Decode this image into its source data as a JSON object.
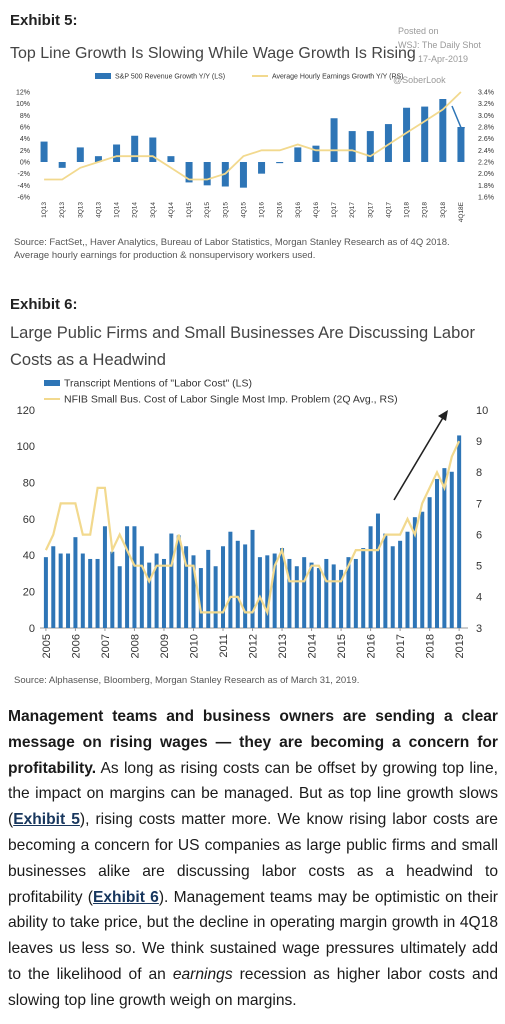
{
  "chart_data": [
    {
      "type": "combo",
      "title": "Exhibit 5:",
      "subtitle": "Top Line Growth Is Slowing While Wage Growth Is Rising",
      "categories": [
        "1Q13",
        "2Q13",
        "3Q13",
        "4Q13",
        "1Q14",
        "2Q14",
        "3Q14",
        "4Q14",
        "1Q15",
        "2Q15",
        "3Q15",
        "4Q15",
        "1Q16",
        "2Q16",
        "3Q16",
        "4Q16",
        "1Q17",
        "2Q17",
        "3Q17",
        "4Q17",
        "1Q18",
        "2Q18",
        "3Q18",
        "4Q18E"
      ],
      "series": [
        {
          "name": "S&P 500 Revenue Growth Y/Y (LS)",
          "kind": "bar",
          "axis": "y",
          "color": "#2e75b6",
          "values": [
            3.5,
            -1,
            2.5,
            1,
            3,
            4.5,
            4.2,
            1,
            -3.5,
            -4,
            -4.2,
            -4.4,
            -2,
            -0.2,
            2.5,
            2.8,
            7.5,
            5.3,
            5.3,
            6.5,
            9.3,
            9.5,
            10.8,
            6
          ]
        },
        {
          "name": "Average Hourly Earnings Growth Y/Y (RS)",
          "kind": "line",
          "axis": "y2",
          "color": "#f2d98e",
          "values": [
            1.9,
            1.9,
            2.1,
            2.2,
            2.3,
            2.3,
            2.3,
            2.1,
            1.9,
            1.9,
            2.0,
            2.3,
            2.4,
            2.4,
            2.5,
            2.4,
            2.4,
            2.4,
            2.3,
            2.5,
            2.7,
            2.9,
            3.1,
            3.4
          ]
        }
      ],
      "ylim": [
        -6,
        12
      ],
      "yticks": [
        {
          "value": -6,
          "label": "-6%"
        },
        {
          "value": -4,
          "label": "-4%"
        },
        {
          "value": -2,
          "label": "-2%"
        },
        {
          "value": 0,
          "label": "0%"
        },
        {
          "value": 2,
          "label": "2%"
        },
        {
          "value": 4,
          "label": "4%"
        },
        {
          "value": 6,
          "label": "6%"
        },
        {
          "value": 8,
          "label": "8%"
        },
        {
          "value": 10,
          "label": "10%"
        },
        {
          "value": 12,
          "label": "12%"
        }
      ],
      "y2lim": [
        1.6,
        3.4
      ],
      "y2ticks": [
        {
          "value": 1.6,
          "label": "1.6%"
        },
        {
          "value": 1.8,
          "label": "1.8%"
        },
        {
          "value": 2.0,
          "label": "2.0%"
        },
        {
          "value": 2.2,
          "label": "2.2%"
        },
        {
          "value": 2.4,
          "label": "2.4%"
        },
        {
          "value": 2.6,
          "label": "2.6%"
        },
        {
          "value": 2.8,
          "label": "2.8%"
        },
        {
          "value": 3.0,
          "label": "3.0%"
        },
        {
          "value": 3.2,
          "label": "3.2%"
        },
        {
          "value": 3.4,
          "label": "3.4%"
        }
      ],
      "source": [
        "Source: FactSet,, Haver Analytics, Bureau of Labor Statistics, Morgan Stanley Research as of 4Q 2018.",
        "Average hourly earnings for production & nonsupervisory workers used."
      ]
    },
    {
      "type": "combo",
      "title": "Exhibit 6:",
      "subtitle": "Large Public Firms and Small Businesses Are Discussing Labor Costs as a Headwind",
      "x": [
        2005,
        2005.25,
        2005.5,
        2005.75,
        2006,
        2006.25,
        2006.5,
        2006.75,
        2007,
        2007.25,
        2007.5,
        2007.75,
        2008,
        2008.25,
        2008.5,
        2008.75,
        2009,
        2009.25,
        2009.5,
        2009.75,
        2010,
        2010.25,
        2010.5,
        2010.75,
        2011,
        2011.25,
        2011.5,
        2011.75,
        2012,
        2012.25,
        2012.5,
        2012.75,
        2013,
        2013.25,
        2013.5,
        2013.75,
        2014,
        2014.25,
        2014.5,
        2014.75,
        2015,
        2015.25,
        2015.5,
        2015.75,
        2016,
        2016.25,
        2016.5,
        2016.75,
        2017,
        2017.25,
        2017.5,
        2017.75,
        2018,
        2018.25,
        2018.5,
        2018.75,
        2019
      ],
      "series": [
        {
          "name": "Transcript Mentions of \"Labor Cost\" (LS)",
          "kind": "bar",
          "axis": "y",
          "color": "#2e75b6",
          "values": [
            39,
            45,
            41,
            41,
            50,
            41,
            38,
            38,
            56,
            42,
            34,
            56,
            56,
            45,
            36,
            41,
            38,
            52,
            51,
            45,
            40,
            33,
            43,
            34,
            45,
            53,
            48,
            46,
            54,
            39,
            40,
            41,
            44,
            38,
            34,
            39,
            36,
            33,
            38,
            35,
            32,
            39,
            38,
            44,
            56,
            63,
            52,
            45,
            48,
            53,
            61,
            64,
            72,
            82,
            88,
            86,
            106
          ]
        },
        {
          "name": "NFIB Small Bus. Cost of Labor Single Most Imp. Problem (2Q Avg., RS)",
          "kind": "line",
          "axis": "y2",
          "color": "#f2d98e",
          "values": [
            5.5,
            6,
            7,
            7,
            7,
            6,
            6,
            7.5,
            7.5,
            5.5,
            6,
            5.5,
            5,
            5,
            4.5,
            5,
            5,
            5,
            6,
            5,
            5,
            3.5,
            3.5,
            3.5,
            3.5,
            4,
            4,
            3.5,
            3.5,
            4,
            3.5,
            5,
            5.5,
            4.5,
            4.5,
            4.5,
            5,
            5,
            4.5,
            4.5,
            4.5,
            5,
            5.5,
            5.5,
            5.5,
            5.5,
            6,
            6,
            6,
            6.5,
            6,
            7,
            7.5,
            8,
            7.5,
            8.5,
            9
          ]
        }
      ],
      "xlim": [
        2004.8,
        2019.3
      ],
      "xticks": [
        2005,
        2006,
        2007,
        2008,
        2009,
        2010,
        2011,
        2012,
        2013,
        2014,
        2015,
        2016,
        2017,
        2018,
        2019
      ],
      "ylim": [
        0,
        120
      ],
      "yticks": [
        0,
        20,
        40,
        60,
        80,
        100,
        120
      ],
      "y2lim": [
        3,
        10
      ],
      "y2ticks": [
        3,
        4,
        5,
        6,
        7,
        8,
        9,
        10
      ],
      "source": [
        "Source: Alphasense, Bloomberg, Morgan Stanley Research as of March 31, 2019."
      ]
    }
  ],
  "watermark": {
    "posted": "Posted on",
    "outlet": "WSJ: The Daily Shot",
    "date": "17-Apr-2019",
    "handle": "@SoberLook"
  },
  "article": {
    "lead": "Management teams and business owners are sending a clear message on rising wages — they are becoming a concern for profitability.",
    "body_1": " As long as rising costs can be offset by growing top line, the impact on margins can be managed. But as top line growth slows (",
    "link_1": "Exhibit 5",
    "body_2": "), rising costs matter more. We know rising labor costs are becoming a concern for US companies as large public firms and small businesses alike are discussing labor costs as a headwind to profitability (",
    "link_2": "Exhibit 6",
    "body_3": "). Management teams may be optimistic on their ability to take price, but the decline in operating margin growth in 4Q18 leaves us less so. We think sustained wage pressures ultimately add to the likelihood of an ",
    "emphasis": "earnings",
    "body_4": " recession as higher labor costs and slowing top line growth weigh on margins."
  }
}
